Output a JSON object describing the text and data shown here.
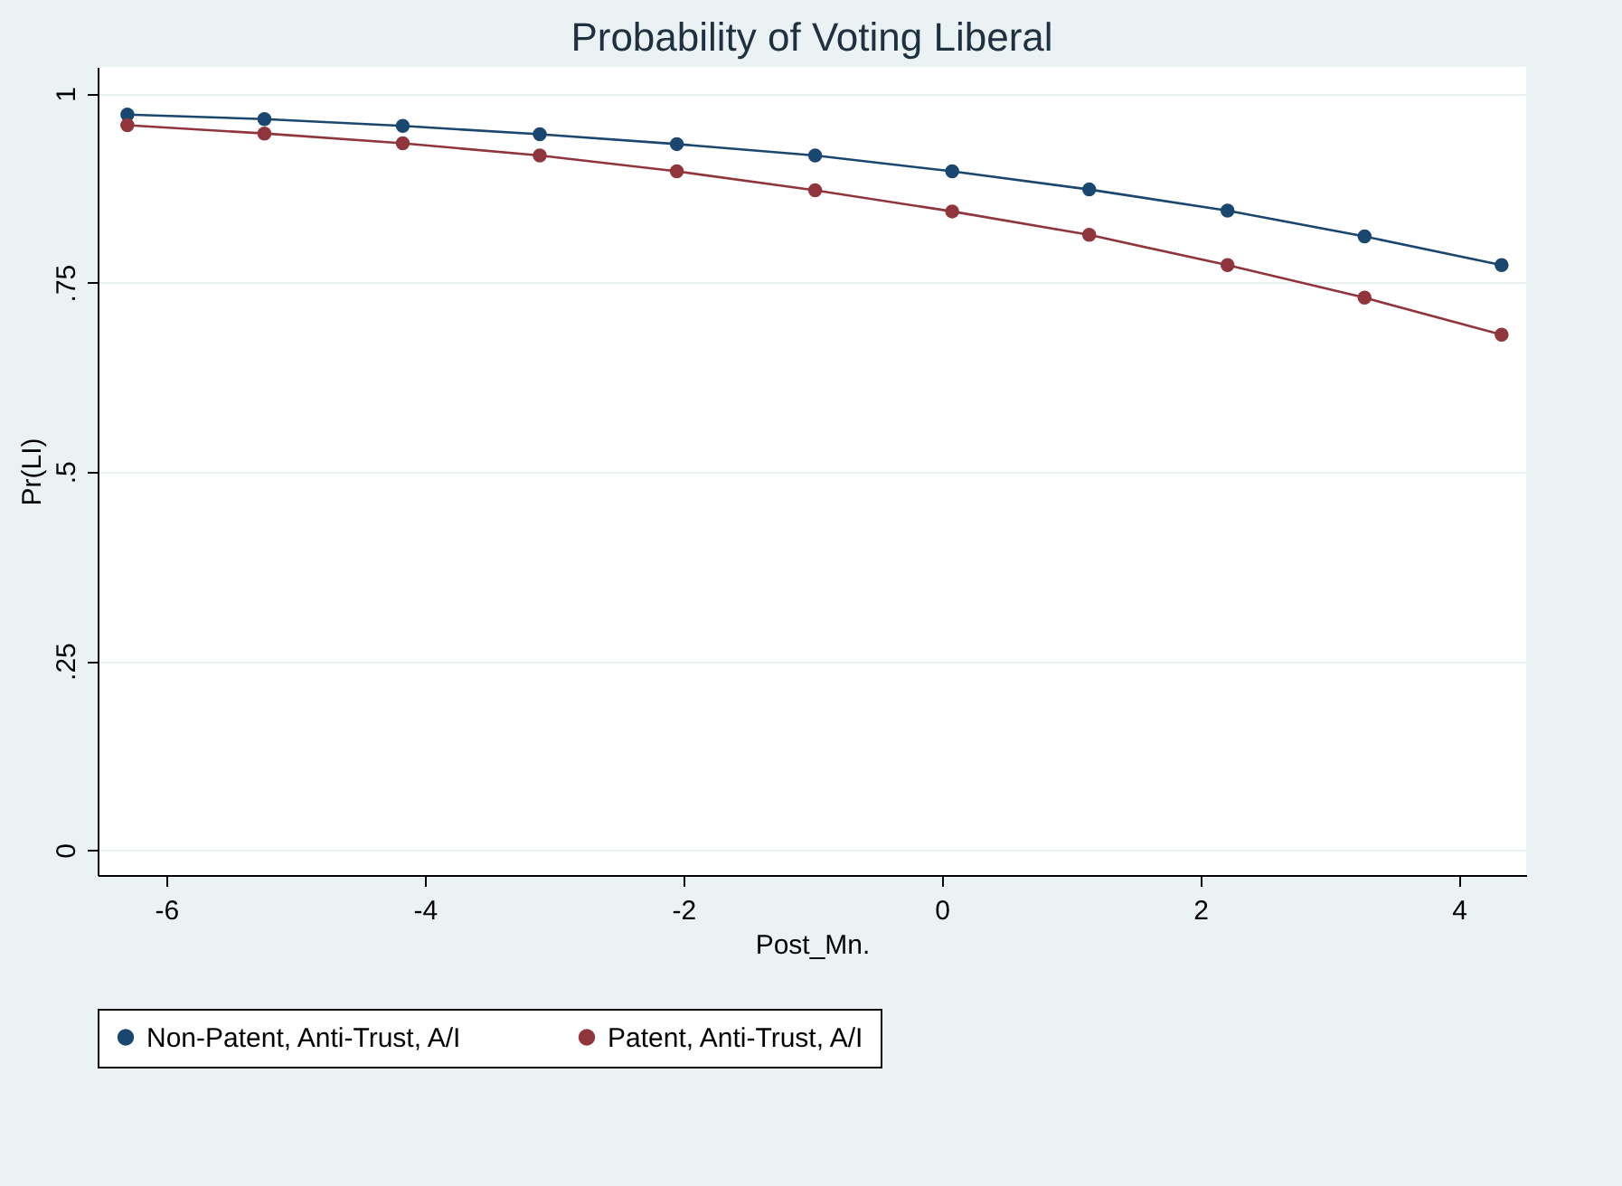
{
  "chart_data": {
    "type": "line",
    "title": "Probability of Voting Liberal",
    "xlabel": "Post_Mn.",
    "ylabel": "Pr(LI)",
    "x": [
      -6.3,
      -5.24,
      -4.17,
      -3.11,
      -2.05,
      -0.98,
      0.08,
      1.14,
      2.21,
      3.27,
      4.33
    ],
    "series": [
      {
        "name": "Non-Patent, Anti-Trust, A/I",
        "color": "#1a476f",
        "values": [
          0.972,
          0.966,
          0.957,
          0.946,
          0.933,
          0.918,
          0.897,
          0.873,
          0.845,
          0.811,
          0.773
        ]
      },
      {
        "name": "Patent, Anti-Trust, A/I",
        "color": "#90353b",
        "values": [
          0.958,
          0.947,
          0.934,
          0.918,
          0.897,
          0.872,
          0.844,
          0.813,
          0.773,
          0.73,
          0.681
        ]
      }
    ],
    "xlim": [
      -6.53,
      4.52
    ],
    "xticks": [
      -6,
      -4,
      -2,
      0,
      2,
      4
    ],
    "ylim": [
      -0.033,
      1.035
    ],
    "yticks": [
      {
        "value": 0,
        "label": "0"
      },
      {
        "value": 0.25,
        "label": ".25"
      },
      {
        "value": 0.5,
        "label": ".5"
      },
      {
        "value": 0.75,
        "label": ".75"
      },
      {
        "value": 1,
        "label": "1"
      }
    ],
    "grid": "y",
    "legend": "bottom",
    "marker": "circle",
    "line_style": "solid"
  }
}
